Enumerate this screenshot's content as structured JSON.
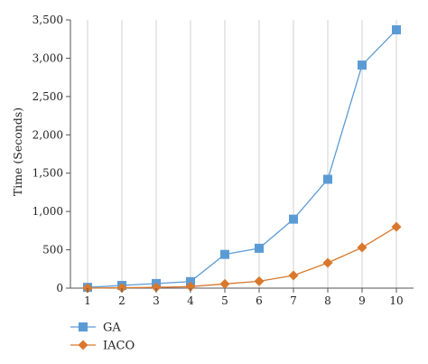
{
  "chart_data": {
    "type": "line",
    "title": "",
    "xlabel": "",
    "ylabel": "Time (Seconds)",
    "x": [
      1,
      2,
      3,
      4,
      5,
      6,
      7,
      8,
      9,
      10
    ],
    "x_tick_labels": [
      "1",
      "2",
      "3",
      "4",
      "5",
      "6",
      "7",
      "8",
      "9",
      "10"
    ],
    "y_ticks": [
      0,
      500,
      1000,
      1500,
      2000,
      2500,
      3000,
      3500
    ],
    "y_tick_labels": [
      "0",
      "500",
      "1,000",
      "1,500",
      "2,000",
      "2,500",
      "3,000",
      "3,500"
    ],
    "ylim": [
      0,
      3500
    ],
    "grid": "vertical",
    "legend_position": "bottom-left",
    "series": [
      {
        "name": "GA",
        "color": "#5b9bd5",
        "marker": "square",
        "values": [
          10,
          35,
          60,
          85,
          440,
          520,
          900,
          1420,
          2910,
          3370
        ]
      },
      {
        "name": "IACO",
        "color": "#d9782d",
        "marker": "diamond",
        "values": [
          0,
          5,
          10,
          20,
          55,
          90,
          165,
          330,
          530,
          800
        ]
      }
    ]
  }
}
